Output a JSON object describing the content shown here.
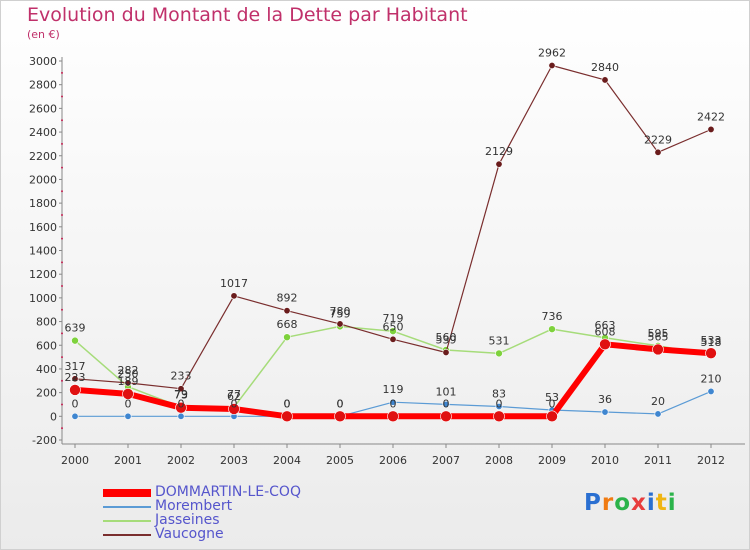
{
  "title": "Evolution du Montant de la Dette par Habitant",
  "subtitle": "(en €)",
  "logo": {
    "letters": [
      "P",
      "r",
      "o",
      "x",
      "i",
      "t",
      "i"
    ],
    "colors": [
      "#2a6fd1",
      "#f07b12",
      "#2bb34a",
      "#e83c3c",
      "#2a6fd1",
      "#f0b512",
      "#2bb34a"
    ]
  },
  "chart_data": {
    "type": "line",
    "categories": [
      "2000",
      "2001",
      "2002",
      "2003",
      "2004",
      "2005",
      "2006",
      "2007",
      "2008",
      "2009",
      "2010",
      "2011",
      "2012"
    ],
    "ylim": [
      -200,
      3000
    ],
    "yticks": [
      -200,
      0,
      200,
      400,
      600,
      800,
      1000,
      1200,
      1400,
      1600,
      1800,
      2000,
      2200,
      2400,
      2600,
      2800,
      3000
    ],
    "grid": false,
    "legend_position": "bottom-left",
    "series": [
      {
        "name": "Morembert",
        "color": "#5b9bd5",
        "point_color": "#3f86d0",
        "line_width": 1.2,
        "marker_radius": 3.2,
        "values": [
          0,
          0,
          0,
          0,
          0,
          0,
          119,
          101,
          83,
          53,
          36,
          20,
          210
        ],
        "labels": [
          "0",
          "0",
          "0",
          "0",
          "0",
          "0",
          "119",
          "101",
          "83",
          "53",
          "36",
          "20",
          "210"
        ]
      },
      {
        "name": "Jasseines",
        "color": "#a6dc7a",
        "point_color": "#7ed23c",
        "line_width": 1.5,
        "marker_radius": 3.5,
        "values": [
          639,
          250,
          79,
          77,
          668,
          759,
          719,
          560,
          531,
          736,
          663,
          595,
          518
        ],
        "labels": [
          "639",
          "250",
          "79",
          "77",
          "668",
          "759",
          "719",
          "560",
          "531",
          "736",
          "663",
          "595",
          "518"
        ]
      },
      {
        "name": "Vaucogne",
        "color": "#7a2e2e",
        "point_color": "#6a1c1c",
        "line_width": 1.2,
        "marker_radius": 3.2,
        "values": [
          317,
          282,
          233,
          1017,
          892,
          780,
          650,
          539,
          2129,
          2962,
          2840,
          2229,
          2422
        ],
        "labels": [
          "317",
          "282",
          "233",
          "1017",
          "892",
          "780",
          "650",
          "539",
          "2129",
          "2962",
          "2840",
          "2229",
          "2422"
        ]
      },
      {
        "name": "DOMMARTIN-LE-COQ",
        "color": "#ff0000",
        "point_color": "#e01010",
        "line_width": 6,
        "marker_radius": 5.5,
        "values": [
          223,
          189,
          73,
          62,
          0,
          0,
          0,
          0,
          0,
          0,
          608,
          565,
          533
        ],
        "labels": [
          "223",
          "189",
          "73",
          "62",
          "0",
          "0",
          "0",
          "0",
          "0",
          "0",
          "608",
          "565",
          "533"
        ]
      }
    ],
    "legend": [
      {
        "name": "DOMMARTIN-LE-COQ",
        "color": "#ff0000",
        "thickness": 8
      },
      {
        "name": "Morembert",
        "color": "#5b9bd5",
        "thickness": 2
      },
      {
        "name": "Jasseines",
        "color": "#a6dc7a",
        "thickness": 2
      },
      {
        "name": "Vaucogne",
        "color": "#7a2e2e",
        "thickness": 2
      }
    ]
  }
}
